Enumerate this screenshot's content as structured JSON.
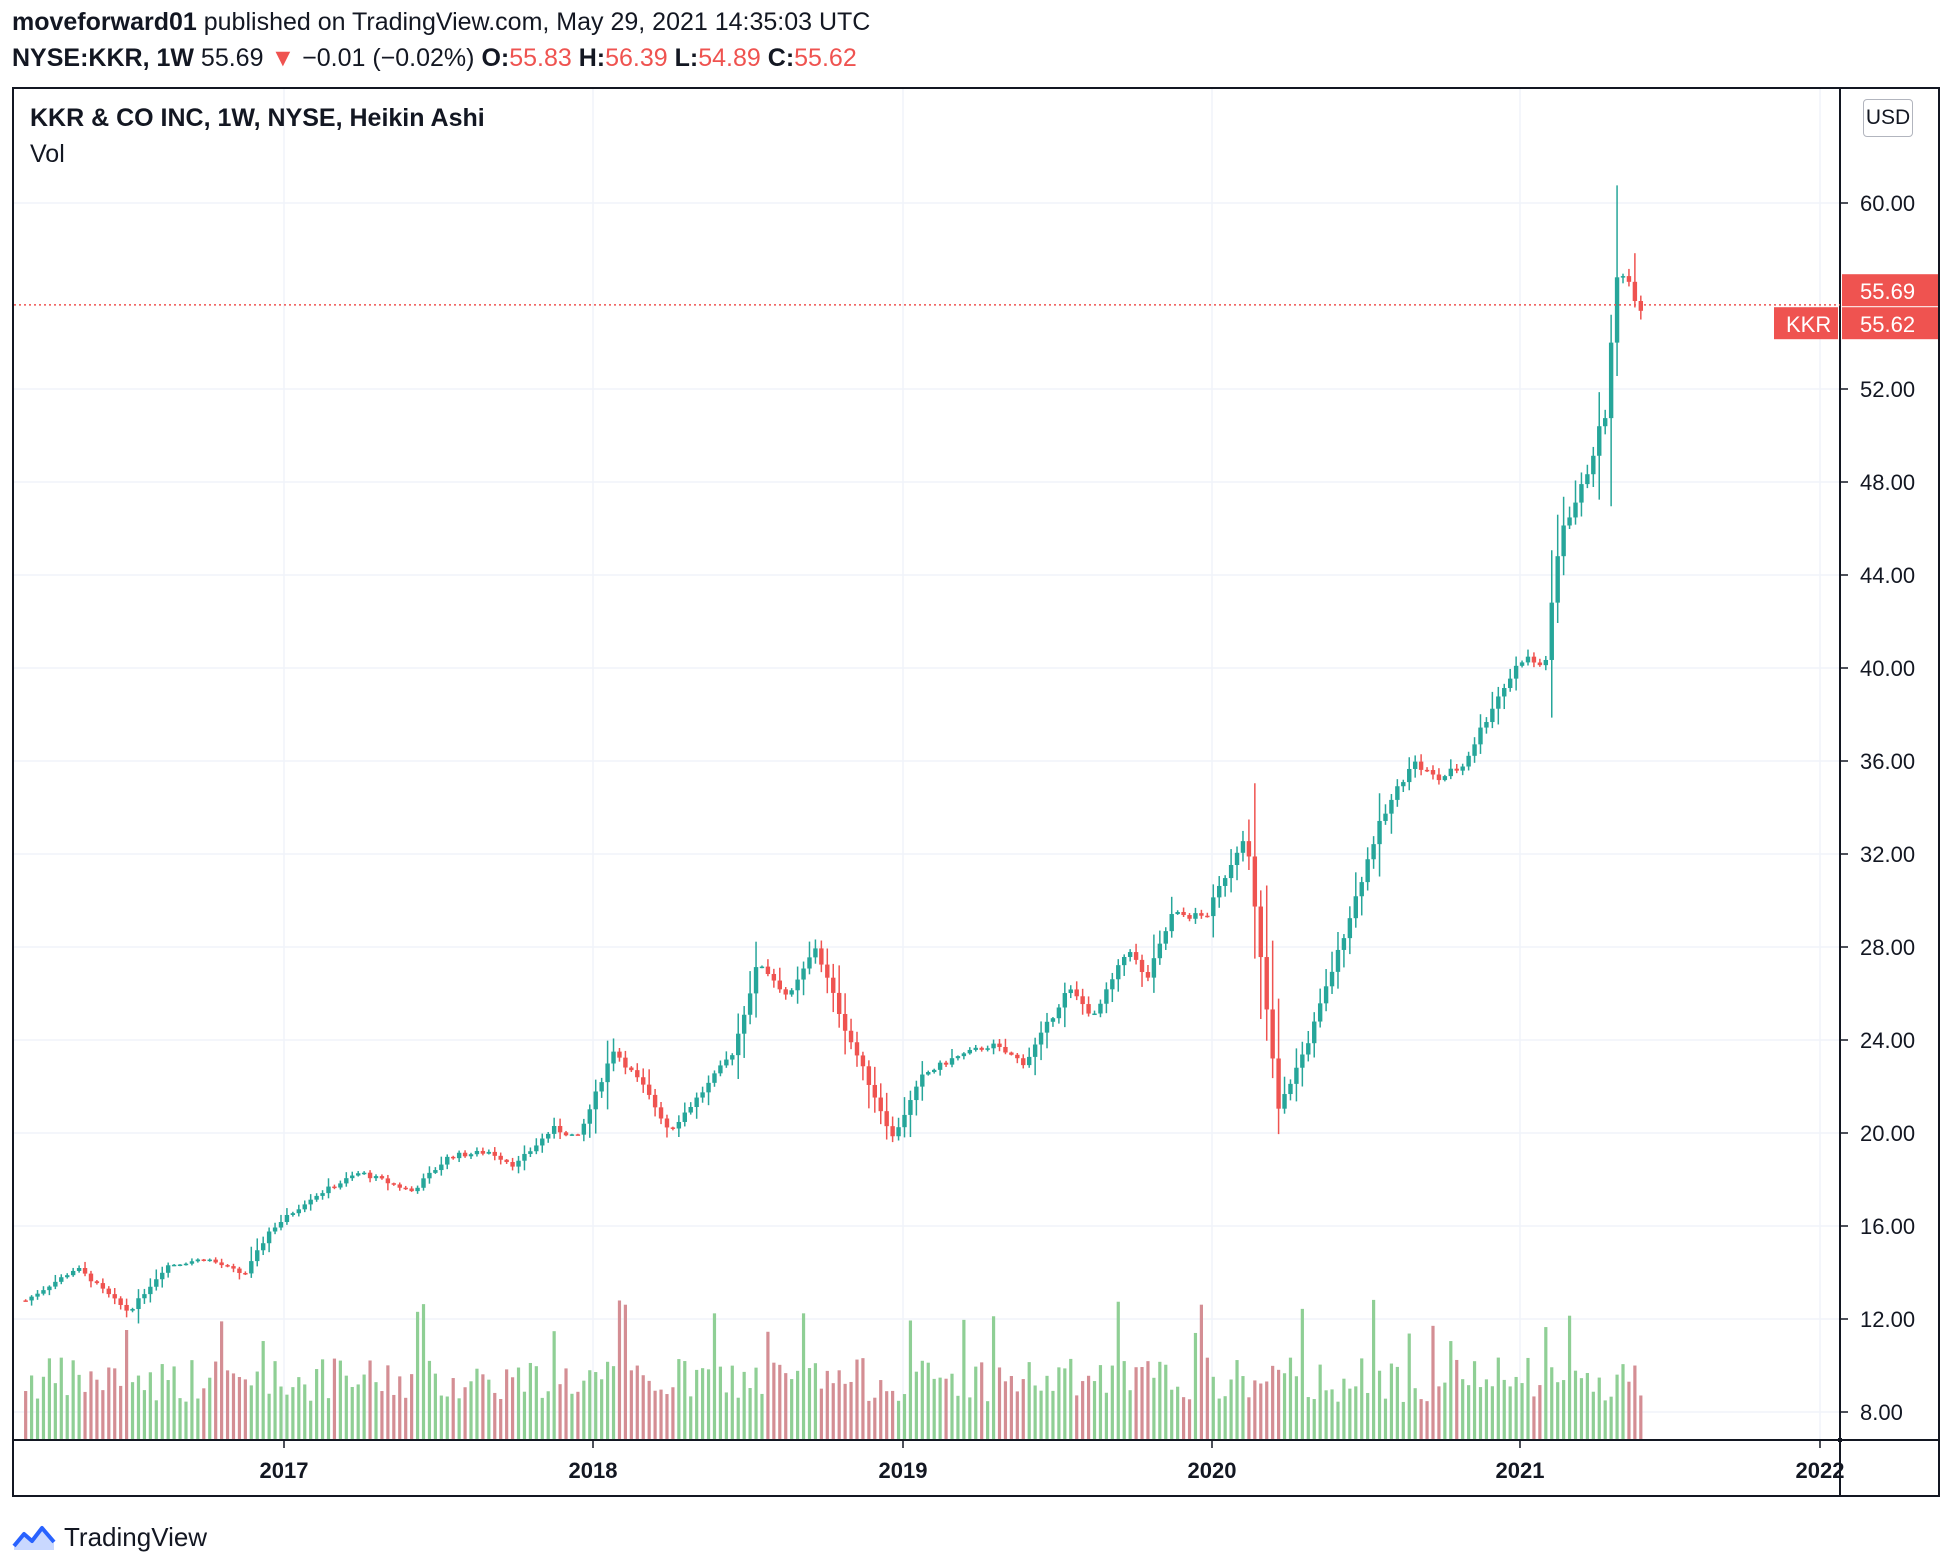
{
  "header": {
    "author": "moveforward01",
    "published_text": "published on TradingView.com, May 29, 2021 14:35:03 UTC",
    "symbol": "NYSE:KKR, 1W",
    "price": "55.69",
    "change": "−0.01 (−0.02%)",
    "o_label": "O:",
    "o_value": "55.83",
    "h_label": "H:",
    "h_value": "56.39",
    "l_label": "L:",
    "l_value": "54.89",
    "c_label": "C:",
    "c_value": "55.62"
  },
  "legend": {
    "title": "KKR & CO INC, 1W, NYSE, Heikin Ashi",
    "vol_label": "Vol"
  },
  "currency_button": "USD",
  "footer": {
    "brand": "TradingView"
  },
  "colors": {
    "up": "#26a69a",
    "down": "#ef5350",
    "vol_up": "#8fcf95",
    "vol_down": "#d48e94",
    "grid": "#f0f3fa"
  },
  "chart_data": {
    "type": "candlestick",
    "style": "Heikin Ashi",
    "interval": "1W",
    "y_ticks": [
      "60.00",
      "52.00",
      "48.00",
      "44.00",
      "40.00",
      "36.00",
      "32.00",
      "28.00",
      "24.00",
      "20.00",
      "16.00",
      "12.00",
      "8.00"
    ],
    "ylim": [
      5,
      65
    ],
    "x_ticks": [
      "2017",
      "2018",
      "2019",
      "2020",
      "2021",
      "2022"
    ],
    "grid": true,
    "price_labels": {
      "high_label": "55.69",
      "last_label": "55.62",
      "symbol_tag": "KKR"
    },
    "close_series": [
      {
        "x": "2016-03-01",
        "y": 12.8
      },
      {
        "x": "2016-05-01",
        "y": 14.2
      },
      {
        "x": "2016-07-01",
        "y": 12.3
      },
      {
        "x": "2016-08-15",
        "y": 14.3
      },
      {
        "x": "2016-10-01",
        "y": 14.6
      },
      {
        "x": "2016-11-15",
        "y": 13.9
      },
      {
        "x": "2016-12-15",
        "y": 15.8
      },
      {
        "x": "2017-02-01",
        "y": 17.2
      },
      {
        "x": "2017-04-01",
        "y": 18.3
      },
      {
        "x": "2017-06-01",
        "y": 17.5
      },
      {
        "x": "2017-07-15",
        "y": 19.0
      },
      {
        "x": "2017-09-01",
        "y": 19.2
      },
      {
        "x": "2017-10-01",
        "y": 18.6
      },
      {
        "x": "2017-11-15",
        "y": 20.2
      },
      {
        "x": "2017-12-15",
        "y": 19.8
      },
      {
        "x": "2018-01-25",
        "y": 23.6
      },
      {
        "x": "2018-03-01",
        "y": 22.0
      },
      {
        "x": "2018-04-01",
        "y": 20.1
      },
      {
        "x": "2018-05-15",
        "y": 22.0
      },
      {
        "x": "2018-06-15",
        "y": 23.5
      },
      {
        "x": "2018-07-15",
        "y": 27.4
      },
      {
        "x": "2018-08-20",
        "y": 25.8
      },
      {
        "x": "2018-09-20",
        "y": 28.0
      },
      {
        "x": "2018-10-25",
        "y": 24.5
      },
      {
        "x": "2018-12-20",
        "y": 19.8
      },
      {
        "x": "2019-01-25",
        "y": 22.5
      },
      {
        "x": "2019-03-01",
        "y": 23.2
      },
      {
        "x": "2019-04-15",
        "y": 23.8
      },
      {
        "x": "2019-05-25",
        "y": 23.0
      },
      {
        "x": "2019-07-15",
        "y": 26.2
      },
      {
        "x": "2019-08-15",
        "y": 25.0
      },
      {
        "x": "2019-09-25",
        "y": 28.0
      },
      {
        "x": "2019-10-15",
        "y": 26.5
      },
      {
        "x": "2019-11-15",
        "y": 29.4
      },
      {
        "x": "2019-12-25",
        "y": 29.3
      },
      {
        "x": "2020-02-10",
        "y": 33.0
      },
      {
        "x": "2020-03-20",
        "y": 21.0
      },
      {
        "x": "2020-04-25",
        "y": 24.0
      },
      {
        "x": "2020-06-01",
        "y": 28.0
      },
      {
        "x": "2020-07-15",
        "y": 33.0
      },
      {
        "x": "2020-08-25",
        "y": 36.0
      },
      {
        "x": "2020-09-25",
        "y": 35.2
      },
      {
        "x": "2020-10-25",
        "y": 35.8
      },
      {
        "x": "2020-12-01",
        "y": 38.5
      },
      {
        "x": "2021-01-05",
        "y": 40.5
      },
      {
        "x": "2021-01-31",
        "y": 40.0
      },
      {
        "x": "2021-02-20",
        "y": 46.0
      },
      {
        "x": "2021-03-15",
        "y": 47.5
      },
      {
        "x": "2021-04-15",
        "y": 51.0
      },
      {
        "x": "2021-05-01",
        "y": 57.5
      },
      {
        "x": "2021-05-28",
        "y": 55.6
      }
    ],
    "volume_label": "Vol"
  }
}
